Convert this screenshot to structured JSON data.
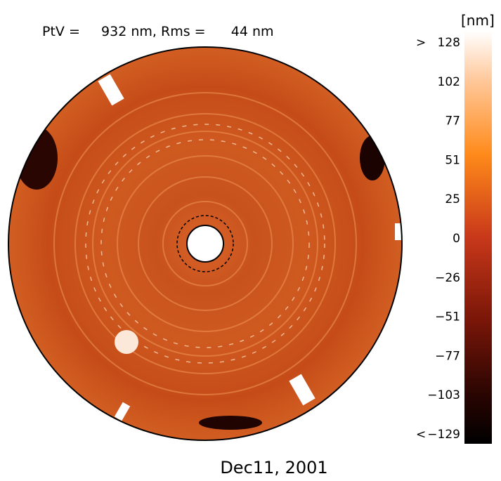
{
  "header": {
    "title": "PtV =     932 nm, Rms =      44 nm"
  },
  "colorbar": {
    "unit": "[nm]",
    "upper_marker": ">",
    "lower_marker": "<",
    "ticks": [
      "128",
      "102",
      "77",
      "51",
      "25",
      "0",
      "−26",
      "−51",
      "−77",
      "−103",
      "−129"
    ]
  },
  "footer": {
    "date": "Dec11, 2001"
  }
}
